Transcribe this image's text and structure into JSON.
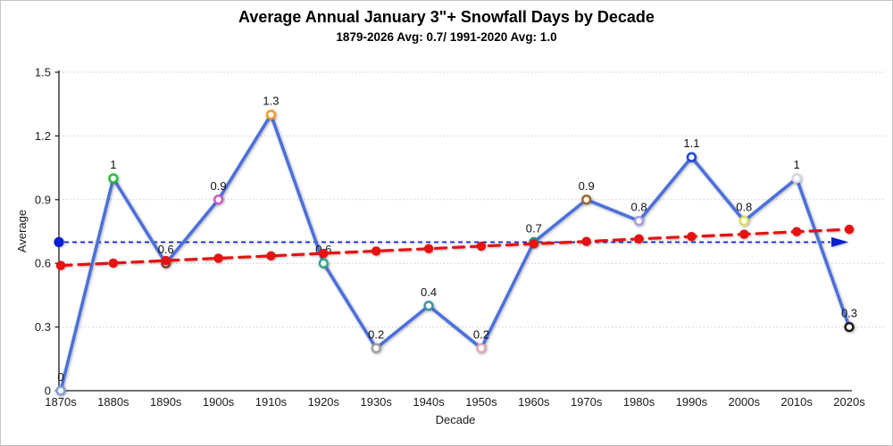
{
  "header": {
    "title": "Average Annual January 3\"+ Snowfall Days by Decade",
    "subtitle": "1879-2026 Avg: 0.7/ 1991-2020 Avg: 1.0"
  },
  "chart_data": {
    "type": "line",
    "title": "Average Annual January 3\"+ Snowfall Days by Decade",
    "subtitle": "1879-2026 Avg: 0.7/ 1991-2020 Avg: 1.0",
    "xlabel": "Decade",
    "ylabel": "Average",
    "ylim": [
      0,
      1.5
    ],
    "ytick_labels": [
      "0",
      "0.3",
      "0.6",
      "0.9",
      "1.2",
      "1.5"
    ],
    "ytick_values": [
      0,
      0.3,
      0.6,
      0.9,
      1.2,
      1.5
    ],
    "grid": "horizontal dotted",
    "legend": "none",
    "categories": [
      "1870s",
      "1880s",
      "1890s",
      "1900s",
      "1910s",
      "1920s",
      "1930s",
      "1940s",
      "1950s",
      "1960s",
      "1970s",
      "1980s",
      "1990s",
      "2000s",
      "2010s",
      "2020s"
    ],
    "main_series": {
      "values": [
        0,
        1,
        0.6,
        0.9,
        1.3,
        0.6,
        0.2,
        0.4,
        0.2,
        0.7,
        0.9,
        0.8,
        1.1,
        0.8,
        1,
        0.3
      ],
      "point_labels": [
        "0",
        "1",
        "0.6",
        "0.9",
        "1.3",
        "0.6",
        "0.2",
        "0.4",
        "0.2",
        "0.7",
        "0.9",
        "0.8",
        "1.1",
        "0.8",
        "1",
        "0.3"
      ],
      "line_color": "#4a70de",
      "marker_fill": "#ffffff",
      "marker_colors": [
        "#7f9fd8",
        "#27be3a",
        "#8e3a3a",
        "#c95fc3",
        "#f09d24",
        "#2fa98c",
        "#a0a0a0",
        "#3e93ac",
        "#e3a8b8",
        "#2e9488",
        "#9a6a33",
        "#a79adf",
        "#2244dd",
        "#dfde63",
        "#d8d7ea",
        "#1c1c1c"
      ]
    },
    "trend_series": {
      "style": "dashed with dot markers",
      "color": "#e61212",
      "values": [
        0.59,
        0.601,
        0.613,
        0.624,
        0.635,
        0.647,
        0.658,
        0.669,
        0.681,
        0.692,
        0.703,
        0.715,
        0.726,
        0.737,
        0.749,
        0.76
      ]
    },
    "reference_line": {
      "value": 0.7,
      "style": "dashed with start dot and right arrow",
      "color": "#0a1ed2"
    }
  }
}
